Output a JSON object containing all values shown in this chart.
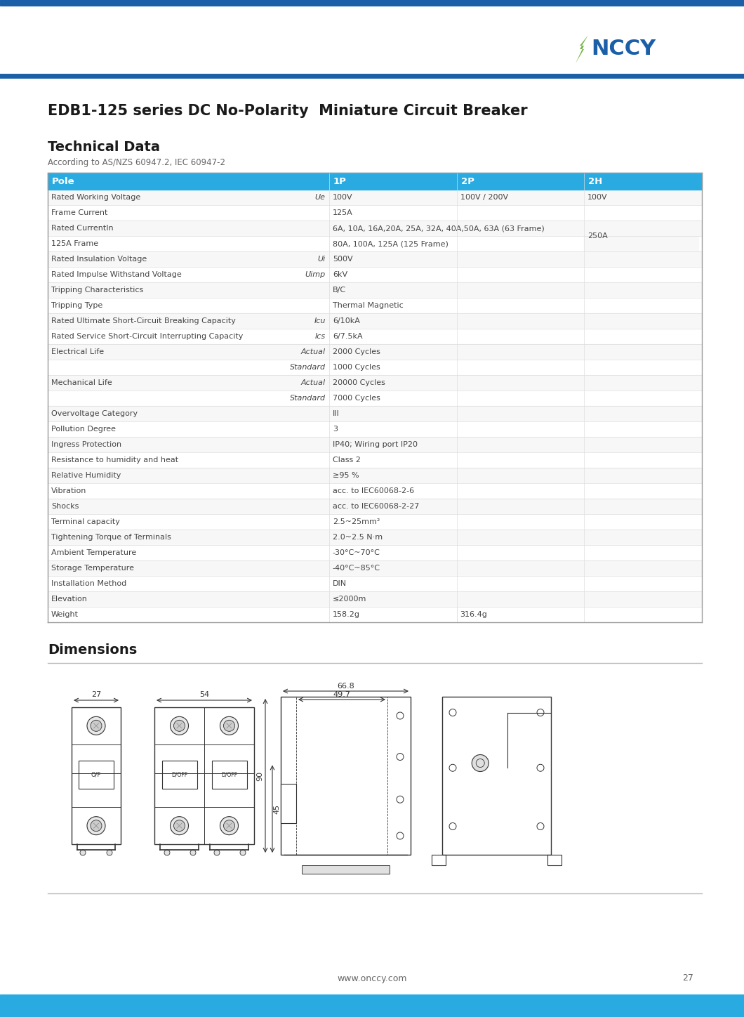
{
  "page_title": "EDB1-125 series DC No-Polarity  Miniature Circuit Breaker",
  "section1_title": "Technical Data",
  "section1_subtitle": "According to AS/NZS 60947.2, IEC 60947-2",
  "section2_title": "Dimensions",
  "header_bg": "#29abe2",
  "header_text": "#ffffff",
  "border_color": "#cccccc",
  "text_color": "#444444",
  "title_color": "#1a1a1a",
  "blue_bar_color": "#1a5fa8",
  "logo_green": "#7ab648",
  "logo_blue": "#1a5fa8",
  "footer_blue": "#29abe2",
  "table_data": [
    [
      "Pole",
      "",
      "1P",
      "2P",
      "2H"
    ],
    [
      "Rated Working Voltage",
      "Ue",
      "100V",
      "100V / 200V",
      "100V"
    ],
    [
      "Frame Current",
      "",
      "125A",
      "",
      ""
    ],
    [
      "Rated CurrentIn",
      "",
      "6A, 10A, 16A,20A, 25A, 32A, 40A,50A, 63A (63 Frame)",
      "",
      "250A"
    ],
    [
      "125A Frame",
      "",
      "80A, 100A, 125A (125 Frame)",
      "",
      ""
    ],
    [
      "Rated Insulation Voltage",
      "Ui",
      "500V",
      "",
      ""
    ],
    [
      "Rated Impulse Withstand Voltage",
      "Uimp",
      "6kV",
      "",
      ""
    ],
    [
      "Tripping Characteristics",
      "",
      "B/C",
      "",
      ""
    ],
    [
      "Tripping Type",
      "",
      "Thermal Magnetic",
      "",
      ""
    ],
    [
      "Rated Ultimate Short-Circuit Breaking Capacity",
      "Icu",
      "6/10kA",
      "",
      ""
    ],
    [
      "Rated Service Short-Circuit Interrupting Capacity",
      "Ics",
      "6/7.5kA",
      "",
      ""
    ],
    [
      "Electrical Life",
      "Actual",
      "2000 Cycles",
      "",
      ""
    ],
    [
      "",
      "Standard",
      "1000 Cycles",
      "",
      ""
    ],
    [
      "Mechanical Life",
      "Actual",
      "20000 Cycles",
      "",
      ""
    ],
    [
      "",
      "Standard",
      "7000 Cycles",
      "",
      ""
    ],
    [
      "Overvoltage Category",
      "",
      "III",
      "",
      ""
    ],
    [
      "Pollution Degree",
      "",
      "3",
      "",
      ""
    ],
    [
      "Ingress Protection",
      "",
      "IP40; Wiring port IP20",
      "",
      ""
    ],
    [
      "Resistance to humidity and heat",
      "",
      "Class 2",
      "",
      ""
    ],
    [
      "Relative Humidity",
      "",
      "≥95 %",
      "",
      ""
    ],
    [
      "Vibration",
      "",
      "acc. to IEC60068-2-6",
      "",
      ""
    ],
    [
      "Shocks",
      "",
      "acc. to IEC60068-2-27",
      "",
      ""
    ],
    [
      "Terminal capacity",
      "",
      "2.5~25mm²",
      "",
      ""
    ],
    [
      "Tightening Torque of Terminals",
      "",
      "2.0~2.5 N·m",
      "",
      ""
    ],
    [
      "Ambient Temperature",
      "",
      "-30°C~70°C",
      "",
      ""
    ],
    [
      "Storage Temperature",
      "",
      "-40°C~85°C",
      "",
      ""
    ],
    [
      "Installation Method",
      "",
      "DIN",
      "",
      ""
    ],
    [
      "Elevation",
      "",
      "≤2000m",
      "",
      ""
    ],
    [
      "Weight",
      "",
      "158.2g",
      "316.4g",
      ""
    ]
  ],
  "footer_text": "www.onccy.com",
  "page_number": "27"
}
